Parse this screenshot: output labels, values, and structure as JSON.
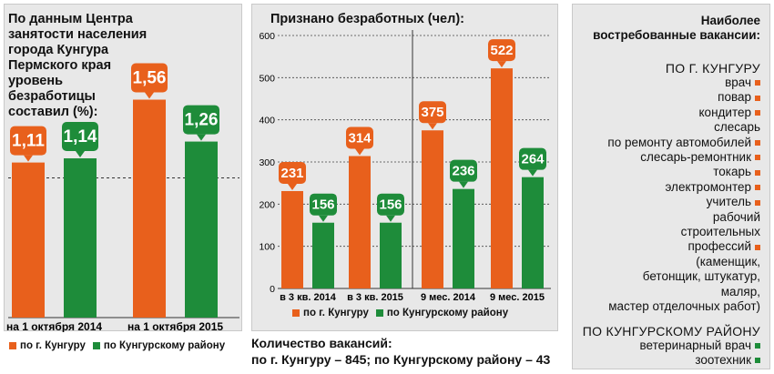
{
  "colors": {
    "city": "#e8601c",
    "district": "#1e8c3a"
  },
  "panel1": {
    "title_lines": [
      "По данным Центра",
      "занятости населения",
      "города Кунгура",
      "Пермского края",
      "уровень",
      "безработицы",
      "составил (%):"
    ],
    "legend_city": "по г. Кунгуру",
    "legend_district": "по Кунгурскому району"
  },
  "panel2": {
    "title": "Признано безработных (чел):",
    "legend_city": "по г. Кунгуру",
    "legend_district": "по Кунгурскому району"
  },
  "vacancies_total": {
    "line1": "Количество вакансий:",
    "line2": "по г. Кунгуру – 845; по Кунгурскому району – 43"
  },
  "panel3": {
    "title_lines": [
      "Наиболее",
      "востребованные вакансии:"
    ],
    "city_header": "ПО Г. КУНГУРУ",
    "city_items": [
      "врач",
      "повар",
      "кондитер",
      "слесарь",
      "по ремонту автомобилей",
      "слесарь-ремонтник",
      "токарь",
      "электромонтер",
      "учитель",
      "рабочий",
      "строительных",
      "профессий",
      "(каменщик,",
      "бетонщик, штукатур,",
      "маляр,",
      "мастер отделочных работ)"
    ],
    "city_markers": [
      true,
      true,
      true,
      false,
      true,
      true,
      true,
      true,
      true,
      false,
      false,
      true,
      false,
      false,
      false,
      false
    ],
    "district_header": "ПО КУНГУРСКОМУ РАЙОНУ",
    "district_items": [
      "ветеринарный врач",
      "зоотехник"
    ],
    "district_markers": [
      true,
      true
    ]
  },
  "chart_data": [
    {
      "type": "bar",
      "title": "уровень безработицы (%)",
      "categories": [
        "на 1 октября 2014",
        "на 1 октября 2015"
      ],
      "series": [
        {
          "name": "по г. Кунгуру",
          "values": [
            1.11,
            1.56
          ],
          "labels": [
            "1,11",
            "1,56"
          ]
        },
        {
          "name": "по Кунгурскому району",
          "values": [
            1.14,
            1.26
          ],
          "labels": [
            "1,14",
            "1,26"
          ]
        }
      ],
      "ylim": [
        0,
        1.85
      ],
      "grid": "dashed line near 1.0"
    },
    {
      "type": "bar",
      "title": "Признано безработных (чел):",
      "categories": [
        "в 3 кв. 2014",
        "в 3 кв. 2015",
        "9 мес. 2014",
        "9 мес. 2015"
      ],
      "series": [
        {
          "name": "по г. Кунгуру",
          "values": [
            231,
            314,
            375,
            522
          ]
        },
        {
          "name": "по Кунгурскому району",
          "values": [
            156,
            156,
            236,
            264
          ]
        }
      ],
      "yticks": [
        0,
        100,
        200,
        300,
        400,
        500,
        600
      ],
      "ylim": [
        0,
        600
      ],
      "grid": true
    }
  ]
}
